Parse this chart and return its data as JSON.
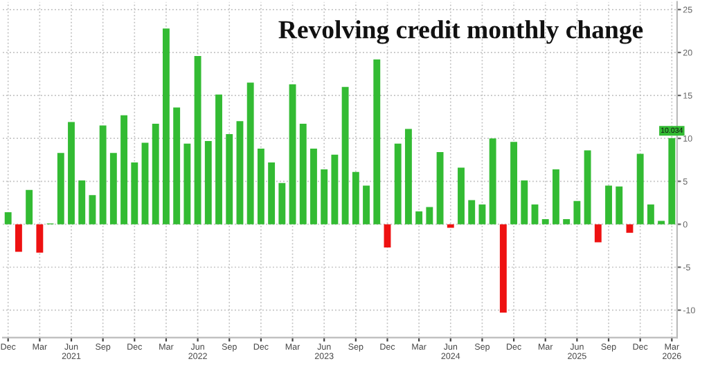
{
  "chart_data": {
    "type": "bar",
    "title": "Revolving credit monthly change",
    "categories": [
      "Dec",
      null,
      null,
      "Mar",
      null,
      null,
      "Jun\n2021",
      null,
      null,
      "Sep",
      null,
      null,
      "Dec",
      null,
      null,
      "Mar",
      null,
      null,
      "Jun\n2022",
      null,
      null,
      "Sep",
      null,
      null,
      "Dec",
      null,
      null,
      "Mar",
      null,
      null,
      "Jun\n2023",
      null,
      null,
      "Sep",
      null,
      null,
      "Dec",
      null,
      null,
      "Mar",
      null,
      null,
      "Jun\n2024",
      null,
      null,
      "Sep",
      null,
      null,
      "Dec",
      null,
      null,
      "Mar",
      null,
      null,
      "Jun\n2025",
      null,
      null,
      "Sep",
      null,
      null,
      "Dec",
      null,
      null,
      "Mar\n2026"
    ],
    "values": [
      1.4,
      -3.2,
      4.0,
      -3.3,
      0.1,
      8.3,
      11.9,
      5.1,
      3.4,
      11.5,
      8.3,
      12.7,
      7.2,
      9.5,
      11.7,
      22.8,
      13.6,
      9.4,
      19.6,
      9.7,
      15.1,
      10.5,
      12.0,
      16.5,
      8.8,
      7.2,
      4.8,
      16.3,
      11.7,
      8.8,
      6.4,
      8.1,
      16.0,
      6.1,
      4.5,
      19.2,
      -2.7,
      9.4,
      11.1,
      1.5,
      2.0,
      8.4,
      -0.4,
      6.6,
      2.8,
      2.3,
      10.0,
      -10.3,
      9.6,
      5.1,
      2.3,
      0.6,
      6.4,
      0.6,
      2.7,
      8.6,
      -2.1,
      4.5,
      4.4,
      -1.0,
      8.2,
      2.3,
      0.4,
      10.034
    ],
    "colors": [
      "#33bb33",
      "#ee1111",
      "#33bb33",
      "#ee1111",
      "#33bb33",
      "#33bb33",
      "#33bb33",
      "#33bb33",
      "#33bb33",
      "#33bb33",
      "#33bb33",
      "#33bb33",
      "#33bb33",
      "#33bb33",
      "#33bb33",
      "#33bb33",
      "#33bb33",
      "#33bb33",
      "#33bb33",
      "#33bb33",
      "#33bb33",
      "#33bb33",
      "#33bb33",
      "#33bb33",
      "#33bb33",
      "#33bb33",
      "#33bb33",
      "#33bb33",
      "#33bb33",
      "#33bb33",
      "#33bb33",
      "#33bb33",
      "#33bb33",
      "#33bb33",
      "#33bb33",
      "#33bb33",
      "#ee1111",
      "#33bb33",
      "#33bb33",
      "#33bb33",
      "#33bb33",
      "#33bb33",
      "#ee1111",
      "#33bb33",
      "#33bb33",
      "#33bb33",
      "#33bb33",
      "#ee1111",
      "#33bb33",
      "#33bb33",
      "#33bb33",
      "#33bb33",
      "#33bb33",
      "#33bb33",
      "#33bb33",
      "#33bb33",
      "#ee1111",
      "#33bb33",
      "#33bb33",
      "#ee1111",
      "#33bb33",
      "#33bb33",
      "#33bb33",
      "#33bb33"
    ],
    "value_labels": [
      null,
      null,
      null,
      null,
      null,
      null,
      null,
      null,
      null,
      null,
      null,
      null,
      null,
      null,
      null,
      null,
      null,
      null,
      null,
      null,
      null,
      null,
      null,
      null,
      null,
      null,
      null,
      null,
      null,
      null,
      null,
      null,
      null,
      null,
      null,
      null,
      null,
      null,
      null,
      null,
      null,
      null,
      null,
      null,
      null,
      null,
      null,
      null,
      null,
      null,
      null,
      null,
      null,
      null,
      null,
      null,
      null,
      null,
      null,
      null,
      null,
      null,
      null,
      "10.034"
    ],
    "ylim": [
      -13.2,
      25.9
    ],
    "yticks": [
      -10,
      -5,
      0,
      5,
      10,
      15,
      20,
      25
    ],
    "grid": true
  }
}
